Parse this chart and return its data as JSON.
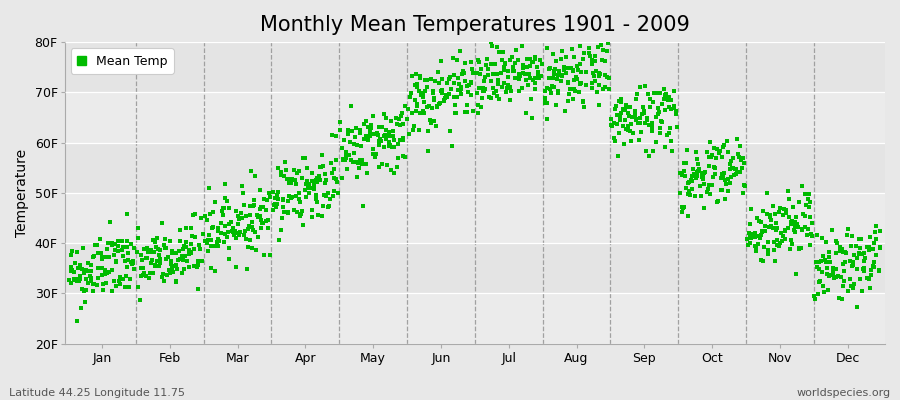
{
  "title": "Monthly Mean Temperatures 1901 - 2009",
  "ylabel": "Temperature",
  "ylim": [
    20,
    80
  ],
  "yticks": [
    20,
    30,
    40,
    50,
    60,
    70,
    80
  ],
  "ytick_labels": [
    "20F",
    "30F",
    "40F",
    "50F",
    "60F",
    "70F",
    "80F"
  ],
  "months": [
    "Jan",
    "Feb",
    "Mar",
    "Apr",
    "May",
    "Jun",
    "Jul",
    "Aug",
    "Sep",
    "Oct",
    "Nov",
    "Dec"
  ],
  "monthly_mean_F": [
    35,
    37,
    44,
    51,
    60,
    69,
    74,
    73,
    65,
    54,
    43,
    36
  ],
  "monthly_std_F": [
    3.5,
    3.5,
    3.5,
    3.5,
    3.5,
    3.5,
    3.5,
    3.5,
    3.5,
    3.5,
    3.5,
    3.5
  ],
  "n_years": 109,
  "dot_color": "#00bb00",
  "dot_size": 6,
  "background_color": "#e8e8e8",
  "band_colors": [
    "#ebebeb",
    "#e4e4e4"
  ],
  "legend_label": "Mean Temp",
  "bottom_left_text": "Latitude 44.25 Longitude 11.75",
  "bottom_right_text": "worldspecies.org",
  "title_fontsize": 15,
  "label_fontsize": 10,
  "tick_fontsize": 9,
  "annotation_fontsize": 8,
  "seed": 42
}
